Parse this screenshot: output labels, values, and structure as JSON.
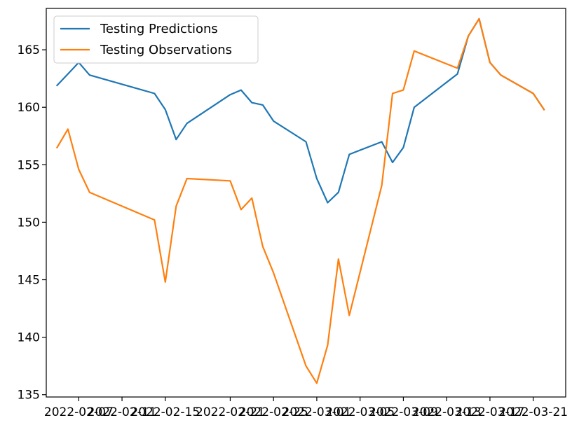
{
  "chart_data": {
    "type": "line",
    "title": "",
    "xlabel": "",
    "ylabel": "",
    "grid": false,
    "legend_placement": "top-left",
    "x_ticks": [
      "2022-02-07",
      "2022-02-11",
      "2022-02-15",
      "2022-02-21",
      "2022-02-25",
      "2022-03-01",
      "2022-03-05",
      "2022-03-09",
      "2022-03-13",
      "2022-03-17",
      "2022-03-21"
    ],
    "xlim": [
      "2022-02-04",
      "2022-03-24"
    ],
    "ylim": [
      134.8,
      168.6
    ],
    "y_ticks": [
      135,
      140,
      145,
      150,
      155,
      160,
      165
    ],
    "series": [
      {
        "name": "Testing Predictions",
        "color": "#1f77b4",
        "x": [
          "2022-02-05",
          "2022-02-06",
          "2022-02-07",
          "2022-02-08",
          "2022-02-14",
          "2022-02-15",
          "2022-02-16",
          "2022-02-17",
          "2022-02-21",
          "2022-02-22",
          "2022-02-23",
          "2022-02-24",
          "2022-02-25",
          "2022-02-28",
          "2022-03-01",
          "2022-03-02",
          "2022-03-03",
          "2022-03-04",
          "2022-03-07",
          "2022-03-08",
          "2022-03-09",
          "2022-03-10",
          "2022-03-14",
          "2022-03-15",
          "2022-03-16",
          "2022-03-17",
          "2022-03-18",
          "2022-03-21",
          "2022-03-22"
        ],
        "values": [
          161.9,
          162.9,
          163.9,
          162.8,
          161.2,
          159.8,
          157.2,
          158.6,
          161.1,
          161.5,
          160.4,
          160.2,
          158.8,
          157.0,
          153.8,
          151.7,
          152.6,
          155.9,
          157.0,
          155.2,
          156.5,
          160.0,
          162.9,
          166.2,
          167.7,
          163.9,
          162.8,
          161.2,
          159.8
        ]
      },
      {
        "name": "Testing Observations",
        "color": "#ff7f0e",
        "x": [
          "2022-02-05",
          "2022-02-06",
          "2022-02-07",
          "2022-02-08",
          "2022-02-14",
          "2022-02-15",
          "2022-02-16",
          "2022-02-17",
          "2022-02-21",
          "2022-02-22",
          "2022-02-23",
          "2022-02-24",
          "2022-02-25",
          "2022-02-28",
          "2022-03-01",
          "2022-03-02",
          "2022-03-03",
          "2022-03-04",
          "2022-03-07",
          "2022-03-08",
          "2022-03-09",
          "2022-03-10",
          "2022-03-14",
          "2022-03-15",
          "2022-03-16",
          "2022-03-17",
          "2022-03-18",
          "2022-03-21",
          "2022-03-22"
        ],
        "values": [
          156.5,
          158.1,
          154.6,
          152.6,
          150.2,
          144.8,
          151.4,
          153.8,
          153.6,
          151.1,
          152.1,
          147.9,
          145.6,
          137.5,
          136.0,
          139.3,
          146.8,
          141.9,
          153.2,
          161.2,
          161.5,
          164.9,
          163.4,
          166.2,
          167.7,
          163.9,
          162.8,
          161.2,
          159.8
        ]
      }
    ]
  }
}
